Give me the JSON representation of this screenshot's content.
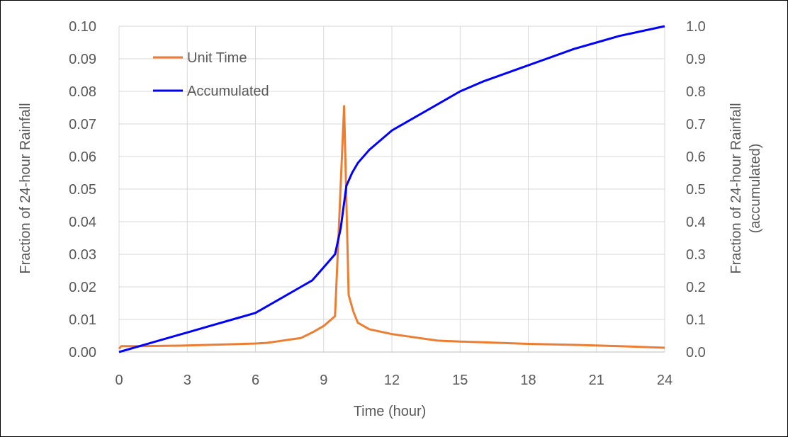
{
  "chart_data": {
    "type": "line",
    "title": "",
    "xlabel": "Time (hour)",
    "ylabel_left": "Fraction of 24-hour Rainfall",
    "ylabel_right": [
      "Fraction of 24-hour Rainfall",
      "(accumulated)"
    ],
    "xlim": [
      0,
      24
    ],
    "ylim_left": [
      0,
      0.1
    ],
    "ylim_right": [
      0,
      1.0
    ],
    "x_ticks": [
      "0",
      "3",
      "6",
      "9",
      "12",
      "15",
      "18",
      "21",
      "24"
    ],
    "y_left_ticks": [
      "0.00",
      "0.01",
      "0.02",
      "0.03",
      "0.04",
      "0.05",
      "0.06",
      "0.07",
      "0.08",
      "0.09",
      "0.10"
    ],
    "y_right_ticks": [
      "0.0",
      "0.1",
      "0.2",
      "0.3",
      "0.4",
      "0.5",
      "0.6",
      "0.7",
      "0.8",
      "0.9",
      "1.0"
    ],
    "grid": true,
    "legend_position": "top-left",
    "series": [
      {
        "name": "Unit Time",
        "axis": "left",
        "color": "#ED7D31",
        "x": [
          0,
          0.1,
          1,
          2,
          3,
          4,
          5,
          6,
          6.5,
          7,
          7.5,
          8,
          8.5,
          9,
          9.5,
          9.9,
          10.1,
          10.3,
          10.5,
          11,
          12,
          13,
          14,
          15,
          16,
          18,
          20,
          22,
          24
        ],
        "y": [
          0.001,
          0.0018,
          0.0018,
          0.0019,
          0.002,
          0.0022,
          0.0024,
          0.0026,
          0.0028,
          0.0033,
          0.0038,
          0.0043,
          0.006,
          0.008,
          0.011,
          0.0755,
          0.0175,
          0.0125,
          0.009,
          0.007,
          0.0055,
          0.0045,
          0.0035,
          0.0032,
          0.003,
          0.0025,
          0.0022,
          0.0018,
          0.0013
        ]
      },
      {
        "name": "Accumulated",
        "axis": "right",
        "color": "#0000FF",
        "x": [
          0,
          1,
          2,
          3,
          4,
          5,
          6,
          7,
          8,
          8.5,
          9,
          9.5,
          9.75,
          10,
          10.25,
          10.5,
          11,
          12,
          13,
          14,
          15,
          16,
          18,
          20,
          21,
          22,
          23,
          24
        ],
        "y": [
          0.0,
          0.02,
          0.04,
          0.06,
          0.08,
          0.1,
          0.12,
          0.16,
          0.2,
          0.22,
          0.26,
          0.3,
          0.38,
          0.51,
          0.55,
          0.58,
          0.62,
          0.68,
          0.72,
          0.76,
          0.8,
          0.83,
          0.88,
          0.93,
          0.95,
          0.97,
          0.985,
          1.0
        ]
      }
    ]
  }
}
